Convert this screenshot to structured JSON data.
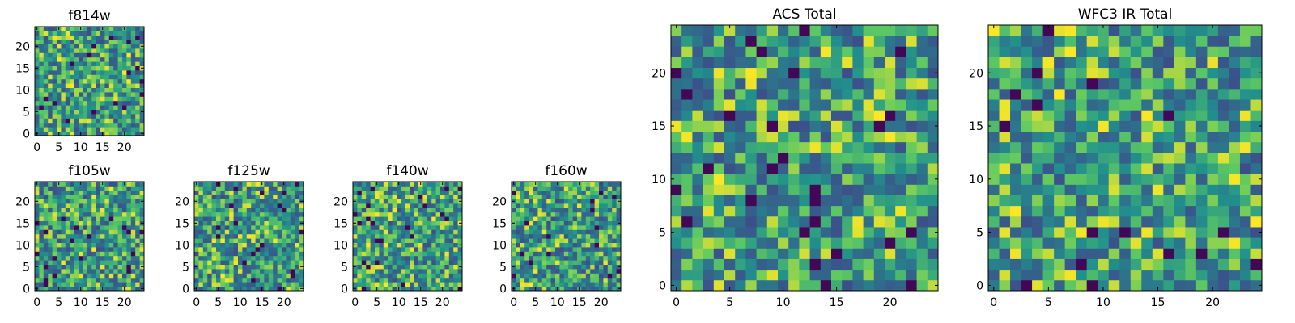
{
  "figure": {
    "colormap": "viridis",
    "colormap_stops": [
      "#440154",
      "#3b528b",
      "#21918c",
      "#5ec962",
      "#fde725"
    ]
  },
  "chart_data": [
    {
      "type": "heatmap",
      "title": "f814w",
      "grid": [
        25,
        25
      ],
      "xlim": [
        -0.5,
        24.5
      ],
      "ylim": [
        -0.5,
        24.5
      ],
      "xticks": [
        0,
        5,
        10,
        15,
        20
      ],
      "yticks": [
        0,
        5,
        10,
        15,
        20
      ],
      "xticklabels": [
        "0",
        "5",
        "10",
        "15",
        "20"
      ],
      "yticklabels": [
        "0",
        "5",
        "10",
        "15",
        "20"
      ],
      "value_range": [
        0,
        1
      ],
      "pattern": "random noise",
      "seed": 11
    },
    {
      "type": "heatmap",
      "title": "f105w",
      "grid": [
        25,
        25
      ],
      "xlim": [
        -0.5,
        24.5
      ],
      "ylim": [
        -0.5,
        24.5
      ],
      "xticks": [
        0,
        5,
        10,
        15,
        20
      ],
      "yticks": [
        0,
        5,
        10,
        15,
        20
      ],
      "xticklabels": [
        "0",
        "5",
        "10",
        "15",
        "20"
      ],
      "yticklabels": [
        "0",
        "5",
        "10",
        "15",
        "20"
      ],
      "value_range": [
        0,
        1
      ],
      "pattern": "random noise",
      "seed": 23
    },
    {
      "type": "heatmap",
      "title": "f125w",
      "grid": [
        25,
        25
      ],
      "xlim": [
        -0.5,
        24.5
      ],
      "ylim": [
        -0.5,
        24.5
      ],
      "xticks": [
        0,
        5,
        10,
        15,
        20
      ],
      "yticks": [
        0,
        5,
        10,
        15,
        20
      ],
      "xticklabels": [
        "0",
        "5",
        "10",
        "15",
        "20"
      ],
      "yticklabels": [
        "0",
        "5",
        "10",
        "15",
        "20"
      ],
      "value_range": [
        0,
        1
      ],
      "pattern": "random noise",
      "seed": 37
    },
    {
      "type": "heatmap",
      "title": "f140w",
      "grid": [
        25,
        25
      ],
      "xlim": [
        -0.5,
        24.5
      ],
      "ylim": [
        -0.5,
        24.5
      ],
      "xticks": [
        0,
        5,
        10,
        15,
        20
      ],
      "yticks": [
        0,
        5,
        10,
        15,
        20
      ],
      "xticklabels": [
        "0",
        "5",
        "10",
        "15",
        "20"
      ],
      "yticklabels": [
        "0",
        "5",
        "10",
        "15",
        "20"
      ],
      "value_range": [
        0,
        1
      ],
      "pattern": "random noise",
      "seed": 41
    },
    {
      "type": "heatmap",
      "title": "f160w",
      "grid": [
        25,
        25
      ],
      "xlim": [
        -0.5,
        24.5
      ],
      "ylim": [
        -0.5,
        24.5
      ],
      "xticks": [
        0,
        5,
        10,
        15,
        20
      ],
      "yticks": [
        0,
        5,
        10,
        15,
        20
      ],
      "xticklabels": [
        "0",
        "5",
        "10",
        "15",
        "20"
      ],
      "yticklabels": [
        "0",
        "5",
        "10",
        "15",
        "20"
      ],
      "value_range": [
        0,
        1
      ],
      "pattern": "random noise",
      "seed": 53
    },
    {
      "type": "heatmap",
      "title": "ACS Total",
      "grid": [
        25,
        25
      ],
      "xlim": [
        -0.5,
        24.5
      ],
      "ylim": [
        -0.5,
        24.5
      ],
      "xticks": [
        0,
        5,
        10,
        15,
        20
      ],
      "yticks": [
        0,
        5,
        10,
        15,
        20
      ],
      "xticklabels": [
        "0",
        "5",
        "10",
        "15",
        "20"
      ],
      "yticklabels": [
        "0",
        "5",
        "10",
        "15",
        "20"
      ],
      "value_range": [
        0,
        1
      ],
      "pattern": "random noise",
      "seed": 67
    },
    {
      "type": "heatmap",
      "title": "WFC3 IR Total",
      "grid": [
        25,
        25
      ],
      "xlim": [
        -0.5,
        24.5
      ],
      "ylim": [
        -0.5,
        24.5
      ],
      "xticks": [
        0,
        5,
        10,
        15,
        20
      ],
      "yticks": [
        0,
        5,
        10,
        15,
        20
      ],
      "xticklabels": [
        "0",
        "5",
        "10",
        "15",
        "20"
      ],
      "yticklabels": [
        "0",
        "5",
        "10",
        "15",
        "20"
      ],
      "value_range": [
        0,
        1
      ],
      "pattern": "random noise",
      "seed": 79
    }
  ]
}
